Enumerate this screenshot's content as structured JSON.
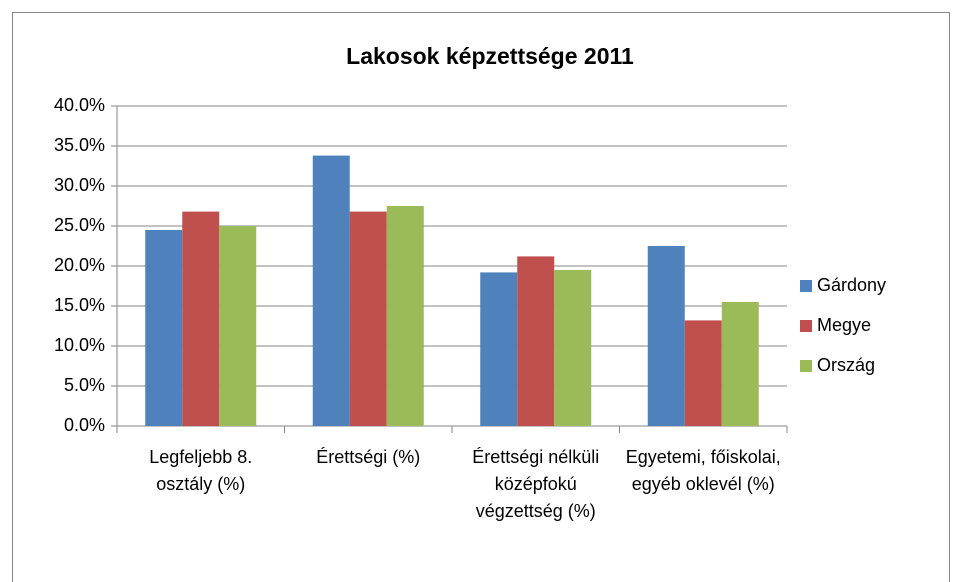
{
  "chart_data": {
    "type": "bar",
    "title": "Lakosok képzettsége 2011",
    "categories": [
      "Legfeljebb 8. osztály (%)",
      "Érettségi (%)",
      "Érettségi nélküli középfokú végzettség (%)",
      "Egyetemi, főiskolai, egyéb oklevél (%)"
    ],
    "series": [
      {
        "name": "Gárdony",
        "color": "#4f81bd",
        "values": [
          24.5,
          33.8,
          19.2,
          22.5
        ]
      },
      {
        "name": "Megye",
        "color": "#c0504d",
        "values": [
          26.8,
          26.8,
          21.2,
          13.2
        ]
      },
      {
        "name": "Ország",
        "color": "#9bbb59",
        "values": [
          25.0,
          27.5,
          19.5,
          15.5
        ]
      }
    ],
    "ylim": [
      0,
      40
    ],
    "yticks": [
      {
        "value": 0,
        "label": "0.0%"
      },
      {
        "value": 5,
        "label": "5.0%"
      },
      {
        "value": 10,
        "label": "10.0%"
      },
      {
        "value": 15,
        "label": "15.0%"
      },
      {
        "value": 20,
        "label": "20.0%"
      },
      {
        "value": 25,
        "label": "25.0%"
      },
      {
        "value": 30,
        "label": "30.0%"
      },
      {
        "value": 35,
        "label": "35.0%"
      },
      {
        "value": 40,
        "label": "40.0%"
      }
    ],
    "grid": true,
    "legend": "right"
  }
}
